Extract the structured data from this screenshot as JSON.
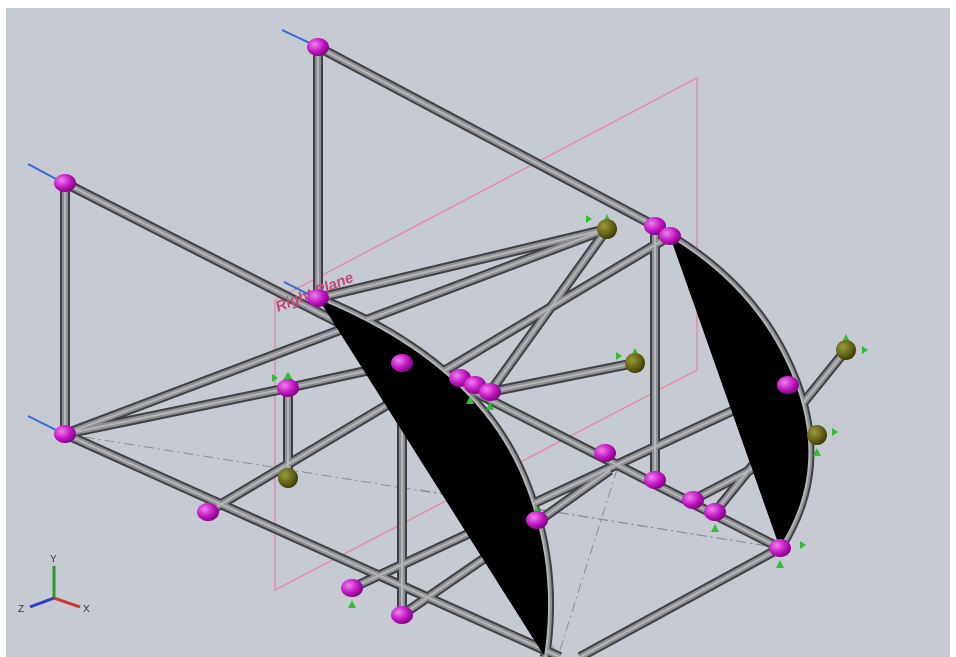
{
  "viewport": {
    "plane_label": "Right Plane",
    "triad": {
      "x": "X",
      "y": "Y",
      "z": "Z"
    }
  }
}
